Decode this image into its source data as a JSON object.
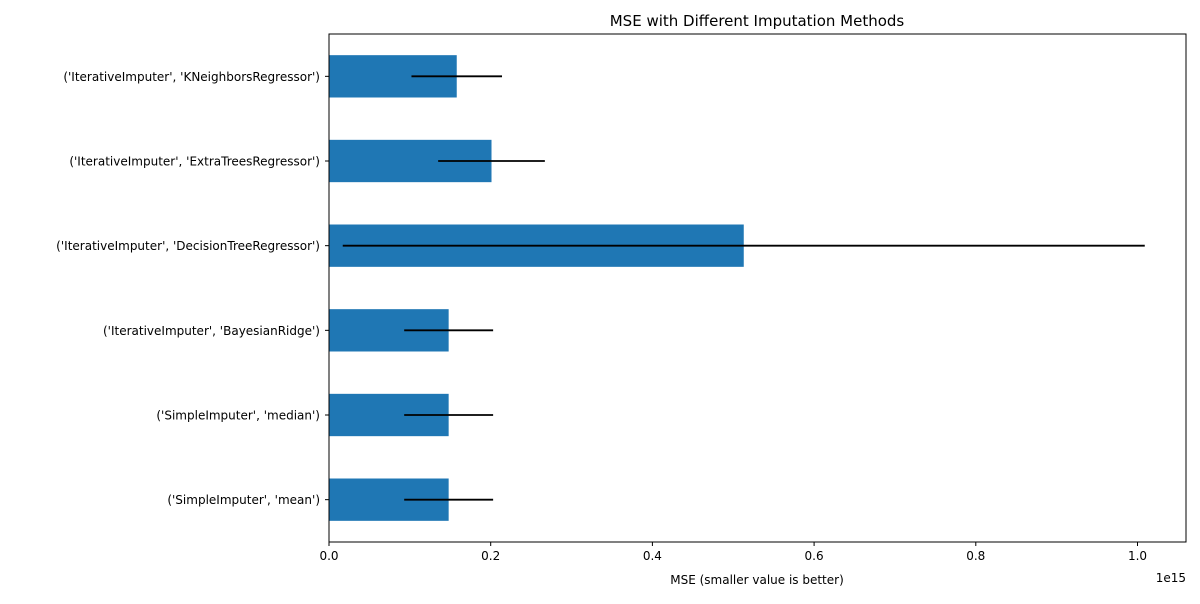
{
  "chart_data": {
    "type": "bar",
    "orientation": "horizontal",
    "title": "MSE with Different Imputation Methods",
    "xlabel": "MSE (smaller value is better)",
    "ylabel": "",
    "x_offset_label": "1e15",
    "x_scale": 1000000000000000.0,
    "xlim": [
      0,
      1.06
    ],
    "xticks": [
      0.0,
      0.2,
      0.4,
      0.6,
      0.8,
      1.0
    ],
    "xtick_labels": [
      "0.0",
      "0.2",
      "0.4",
      "0.6",
      "0.8",
      "1.0"
    ],
    "grid": false,
    "legend": "none",
    "categories": [
      "('SimpleImputer', 'mean')",
      "('SimpleImputer', 'median')",
      "('IterativeImputer', 'BayesianRidge')",
      "('IterativeImputer', 'DecisionTreeRegressor')",
      "('IterativeImputer', 'ExtraTreesRegressor')",
      "('IterativeImputer', 'KNeighborsRegressor')"
    ],
    "values": [
      0.148,
      0.148,
      0.148,
      0.513,
      0.201,
      0.158
    ],
    "errors": [
      0.055,
      0.055,
      0.055,
      0.496,
      0.066,
      0.056
    ],
    "bar_color": "#1f77b4",
    "error_color": "#000000"
  }
}
